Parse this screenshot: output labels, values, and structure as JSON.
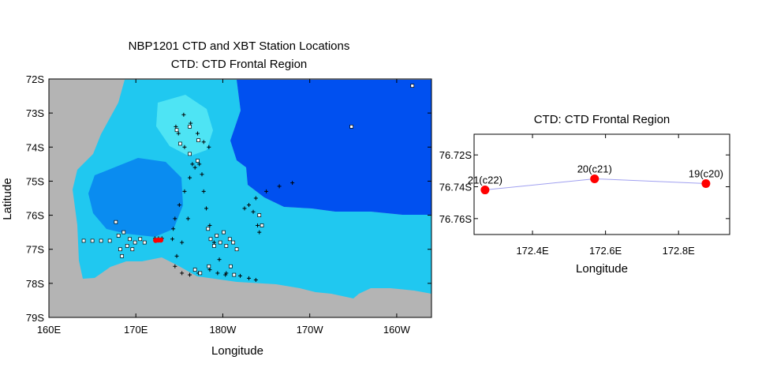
{
  "chart_data": [
    {
      "type": "scatter",
      "title": "NBP1201 CTD and XBT Station Locations",
      "subtitle": "CTD: CTD Frontal Region",
      "xlabel": "Longitude",
      "ylabel": "Latitude",
      "x_ticks": [
        "160E",
        "170E",
        "180W",
        "170W",
        "160W"
      ],
      "y_ticks": [
        "72S",
        "73S",
        "74S",
        "75S",
        "76S",
        "77S",
        "78S",
        "79S"
      ],
      "xlim_deg_east": [
        160,
        204
      ],
      "ylim_deg_south": [
        72,
        79
      ],
      "background": "bathymetry shading (Ross Sea)",
      "land_color": "#b4b4b4",
      "deep_water_color": "#0050f0",
      "series": [
        {
          "marker": "cross",
          "points": [
            [
              172.2,
              76.68
            ],
            [
              172.6,
              76.68
            ],
            [
              173.0,
              76.68
            ],
            [
              174.2,
              76.7
            ],
            [
              174.3,
              76.4
            ],
            [
              174.5,
              76.1
            ],
            [
              175.0,
              75.7
            ],
            [
              175.6,
              75.3
            ],
            [
              176.2,
              74.9
            ],
            [
              176.8,
              74.6
            ],
            [
              177.3,
              74.5
            ],
            [
              177.6,
              74.8
            ],
            [
              177.8,
              75.3
            ],
            [
              178.1,
              75.8
            ],
            [
              178.5,
              76.3
            ],
            [
              179.0,
              76.8
            ],
            [
              179.6,
              77.3
            ],
            [
              180.4,
              77.7
            ],
            [
              176.5,
              74.5
            ],
            [
              175.6,
              74.0
            ],
            [
              174.9,
              73.6
            ],
            [
              174.6,
              73.4
            ],
            [
              175.5,
              73.05
            ],
            [
              176.3,
              73.3
            ],
            [
              177.1,
              73.6
            ],
            [
              177.8,
              73.85
            ],
            [
              178.4,
              74.0
            ],
            [
              176.0,
              76.1
            ],
            [
              175.3,
              76.8
            ],
            [
              174.7,
              77.2
            ],
            [
              174.5,
              77.5
            ],
            [
              175.3,
              77.7
            ],
            [
              176.2,
              77.75
            ],
            [
              177.2,
              77.7
            ],
            [
              178.5,
              77.6
            ],
            [
              179.4,
              77.7
            ],
            [
              180.3,
              77.75
            ],
            [
              182.0,
              77.78
            ],
            [
              183.0,
              77.85
            ],
            [
              183.8,
              77.9
            ],
            [
              182.5,
              75.8
            ],
            [
              183.0,
              75.7
            ],
            [
              183.8,
              75.5
            ],
            [
              185.0,
              75.3
            ],
            [
              186.5,
              75.15
            ],
            [
              188.0,
              75.05
            ],
            [
              183.5,
              75.9
            ],
            [
              184.0,
              76.3
            ],
            [
              184.2,
              76.5
            ]
          ]
        },
        {
          "marker": "open-square",
          "points": [
            [
              164.0,
              76.75
            ],
            [
              165.0,
              76.75
            ],
            [
              166.0,
              76.75
            ],
            [
              167.0,
              76.75
            ],
            [
              167.7,
              76.2
            ],
            [
              168.0,
              76.6
            ],
            [
              168.2,
              77.0
            ],
            [
              168.4,
              77.2
            ],
            [
              168.6,
              76.5
            ],
            [
              169.0,
              76.9
            ],
            [
              169.3,
              76.7
            ],
            [
              169.6,
              77.0
            ],
            [
              169.9,
              76.8
            ],
            [
              170.5,
              76.7
            ],
            [
              171.0,
              76.8
            ],
            [
              178.3,
              76.4
            ],
            [
              178.6,
              76.7
            ],
            [
              179.0,
              76.9
            ],
            [
              179.3,
              76.6
            ],
            [
              179.7,
              76.8
            ],
            [
              180.1,
              76.5
            ],
            [
              180.4,
              76.9
            ],
            [
              180.8,
              76.7
            ],
            [
              181.2,
              76.8
            ],
            [
              181.6,
              77.0
            ],
            [
              176.8,
              77.6
            ],
            [
              177.4,
              77.7
            ],
            [
              178.4,
              77.5
            ],
            [
              180.9,
              77.5
            ],
            [
              181.3,
              77.75
            ],
            [
              174.7,
              73.5
            ],
            [
              175.1,
              73.9
            ],
            [
              176.2,
              74.2
            ],
            [
              177.1,
              74.4
            ],
            [
              176.2,
              73.4
            ],
            [
              177.2,
              73.8
            ],
            [
              184.2,
              76.0
            ],
            [
              184.5,
              76.3
            ],
            [
              194.8,
              73.4
            ],
            [
              201.8,
              72.2
            ]
          ]
        },
        {
          "name": "CTD Frontal Region",
          "marker": "filled-circle",
          "color": "#ff0000",
          "points": [
            [
              172.27,
              76.74
            ],
            [
              172.57,
              76.73
            ],
            [
              172.87,
              76.73
            ]
          ]
        }
      ]
    },
    {
      "type": "line",
      "title": "CTD: CTD Frontal Region",
      "xlabel": "Longitude",
      "ylabel": "",
      "x_ticks": [
        "172.4E",
        "172.6E",
        "172.8E"
      ],
      "y_ticks": [
        "76.72S",
        "76.74S",
        "76.76S"
      ],
      "xlim": [
        172.24,
        172.94
      ],
      "ylim_south": [
        76.707,
        76.77
      ],
      "line_color": "#a0a0f0",
      "marker_color": "#ff0000",
      "points": [
        {
          "lon": 172.27,
          "lat": 76.742,
          "label": "21(c22)"
        },
        {
          "lon": 172.57,
          "lat": 76.735,
          "label": "20(c21)"
        },
        {
          "lon": 172.875,
          "lat": 76.738,
          "label": "19(c20)"
        }
      ]
    }
  ]
}
